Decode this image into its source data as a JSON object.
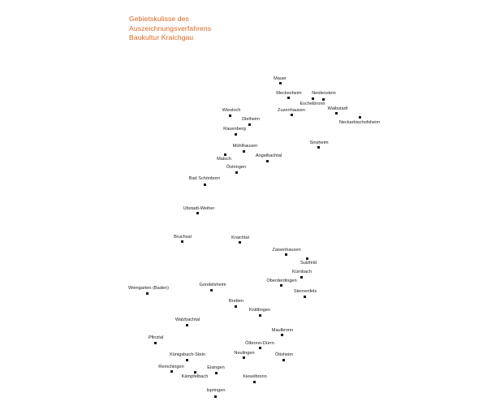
{
  "map": {
    "title_lines": [
      "Gebietskulisse des",
      "Auszeichnungsverfahrens",
      "Baukultur Kraichgau"
    ],
    "colors": {
      "title": "#e8641e",
      "marker": "#1a1a1a",
      "label": "#1a1a1a"
    },
    "places": [
      "Mauer",
      "Meckesheim",
      "Neidenstein",
      "Eschelbronn",
      "Zuzenhausen",
      "Waibstadt",
      "Neckarbischofsheim",
      "Wiesloch",
      "Dielheim",
      "Rauenberg",
      "Mühlhausen",
      "Malsch",
      "Angelbachtal",
      "Sinsheim",
      "Östringen",
      "Bad Schönborn",
      "Ubstadt-Weiher",
      "Bruchsal",
      "Kraichtal",
      "Zaisenhausen",
      "Sulzfeld",
      "Kürnbach",
      "Oberderdingen",
      "Sternenfels",
      "Weingarten (Baden)",
      "Gondelsheim",
      "Bretten",
      "Knittlingen",
      "Walzbachtal",
      "Maulbronn",
      "Pfinztal",
      "Ölbronn-Dürrn",
      "Königsbach-Stein",
      "Neulingen",
      "Ötisheim",
      "Remchingen",
      "Eisingen",
      "Kämpfelbach",
      "Kieselbronn",
      "Ispringen"
    ]
  }
}
